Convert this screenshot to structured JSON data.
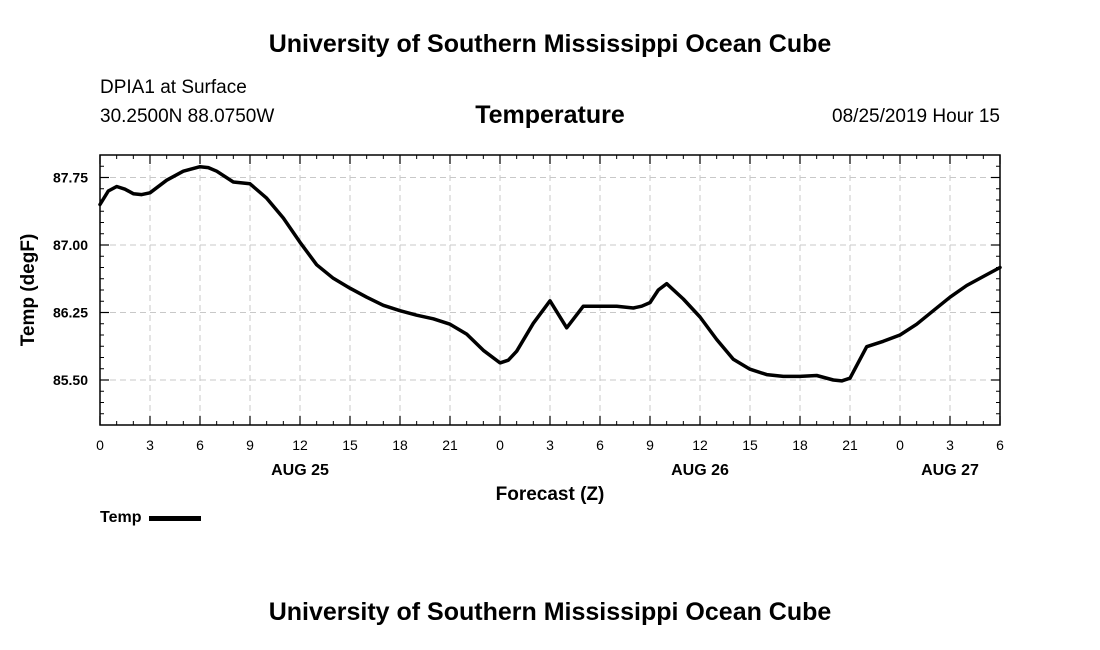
{
  "header": {
    "top_title": "University of Southern Mississippi Ocean Cube",
    "station": "DPIA1 at Surface",
    "latlon": "30.2500N 88.0750W",
    "datetime": "08/25/2019 Hour 15",
    "bottom_title": "University of Southern Mississippi Ocean Cube"
  },
  "chart_data": {
    "type": "line",
    "title": "Temperature",
    "xlabel": "Forecast (Z)",
    "ylabel": "Temp (degF)",
    "x_tick_labels": [
      "0",
      "3",
      "6",
      "9",
      "12",
      "15",
      "18",
      "21",
      "0",
      "3",
      "6",
      "9",
      "12",
      "15",
      "18",
      "21",
      "0",
      "3",
      "6"
    ],
    "x_tick_hours": [
      0,
      3,
      6,
      9,
      12,
      15,
      18,
      21,
      24,
      27,
      30,
      33,
      36,
      39,
      42,
      45,
      48,
      51,
      54
    ],
    "day_labels": [
      {
        "label": "AUG 25",
        "hour": 12
      },
      {
        "label": "AUG 26",
        "hour": 36
      },
      {
        "label": "AUG 27",
        "hour": 51
      }
    ],
    "y_tick_labels": [
      "85.50",
      "86.25",
      "87.00",
      "87.75"
    ],
    "y_tick_values": [
      85.5,
      86.25,
      87.0,
      87.75
    ],
    "xlim": [
      0,
      54
    ],
    "ylim": [
      85.0,
      88.0
    ],
    "grid": true,
    "legend_position": "bottom-left",
    "series": [
      {
        "name": "Temp",
        "color": "#000000",
        "x": [
          0,
          0.5,
          1,
          1.5,
          2,
          2.5,
          3,
          4,
          5,
          6,
          6.5,
          7,
          8,
          9,
          10,
          11,
          12,
          13,
          14,
          15,
          16,
          17,
          18,
          19,
          20,
          21,
          22,
          23,
          24,
          24.5,
          25,
          26,
          27,
          28,
          29,
          30,
          31,
          32,
          32.5,
          33,
          33.5,
          34,
          35,
          36,
          37,
          38,
          39,
          40,
          41,
          42,
          43,
          44,
          44.5,
          45,
          46,
          47,
          48,
          49,
          50,
          51,
          52,
          53,
          54
        ],
        "y": [
          87.45,
          87.6,
          87.65,
          87.62,
          87.57,
          87.56,
          87.58,
          87.72,
          87.82,
          87.87,
          87.86,
          87.82,
          87.7,
          87.68,
          87.52,
          87.3,
          87.03,
          86.78,
          86.63,
          86.52,
          86.42,
          86.33,
          86.27,
          86.22,
          86.18,
          86.12,
          86.01,
          85.83,
          85.69,
          85.72,
          85.82,
          86.13,
          86.38,
          86.08,
          86.32,
          86.32,
          86.32,
          86.3,
          86.32,
          86.36,
          86.5,
          86.57,
          86.4,
          86.2,
          85.95,
          85.73,
          85.62,
          85.56,
          85.54,
          85.54,
          85.55,
          85.5,
          85.49,
          85.52,
          85.87,
          85.93,
          86.0,
          86.12,
          86.27,
          86.42,
          86.55,
          86.65,
          86.75
        ]
      }
    ]
  }
}
